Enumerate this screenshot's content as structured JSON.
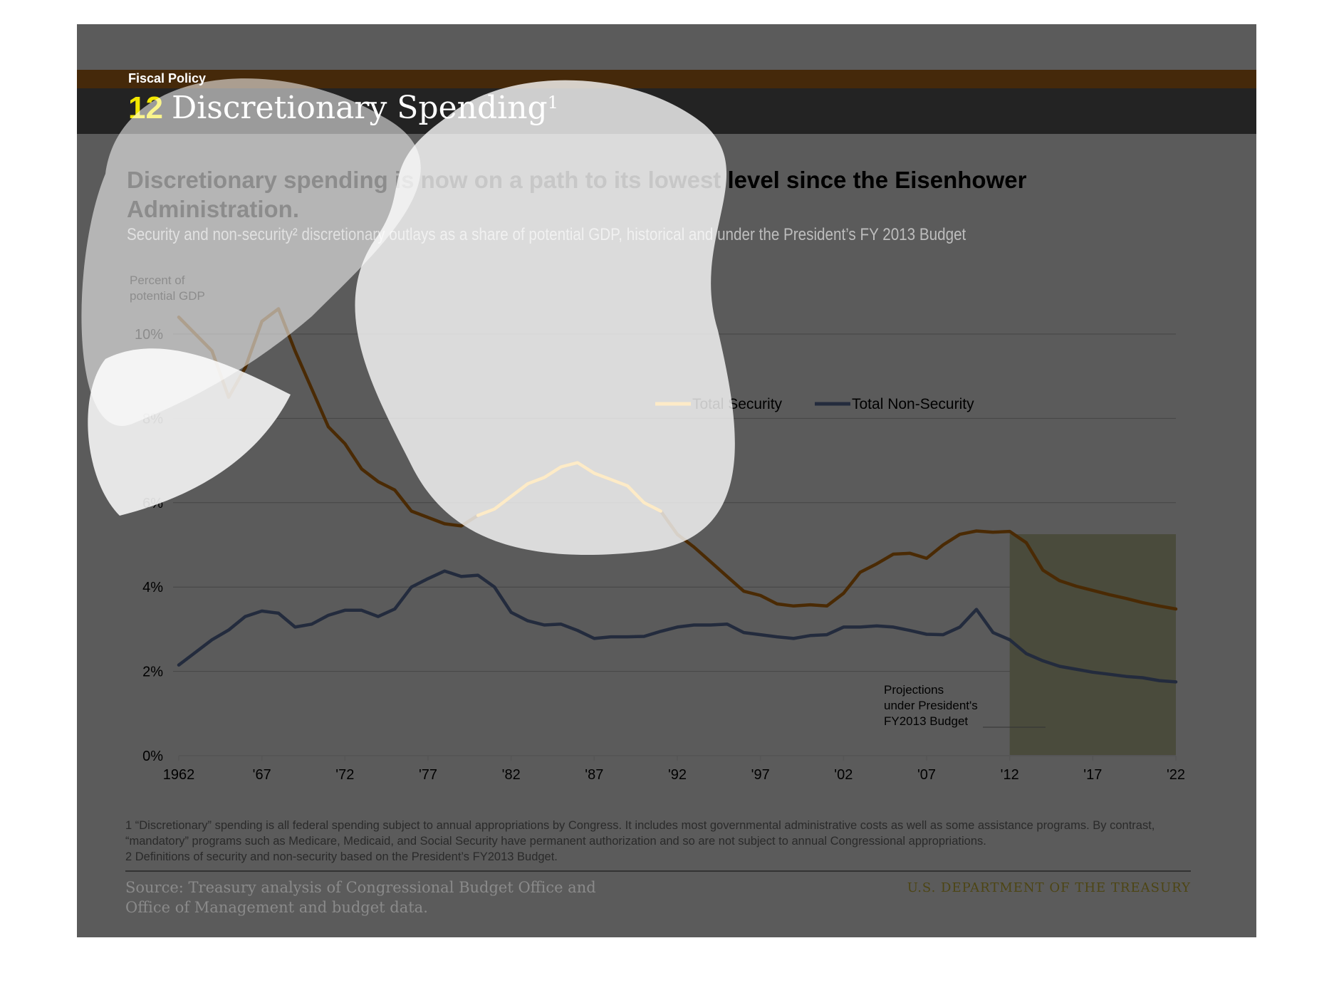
{
  "header": {
    "section": "Fiscal Policy",
    "number": "12",
    "title": "Discretionary Spending",
    "title_superscript": "1"
  },
  "headline": "Discretionary spending is now on a path to its lowest level since the Eisenhower Administration.",
  "subtitle": "Security and non-security² discretionary outlays as a share of potential GDP, historical and under the President’s FY 2013 Budget",
  "footnotes": [
    "1 “Discretionary” spending is all federal spending subject to annual appropriations by Congress. It includes most governmental administrative costs as well as some assistance programs. By contrast, “mandatory” programs such as Medicare, Medicaid, and Social Security have permanent authorization and so are not subject to annual Congressional appropriations.",
    "2 Definitions of security and non-security based on the President’s FY2013 Budget."
  ],
  "source": "Source: Treasury analysis of Congressional Budget Office and Office of Management and budget data.",
  "agency": "U.S. DEPARTMENT OF THE TREASURY",
  "colors": {
    "security": "#4a2a04",
    "security_highlight": "#f5a300",
    "non_security": "#232b3d",
    "projection_shade": "#4a4b3c"
  },
  "chart_data": {
    "type": "line",
    "title": "",
    "ylabel": "Percent of potential GDP",
    "xlabel": "",
    "ylim": [
      0,
      11
    ],
    "y_ticks": [
      "0%",
      "2%",
      "4%",
      "6%",
      "8%",
      "10%"
    ],
    "y_tick_values": [
      0,
      2,
      4,
      6,
      8,
      10
    ],
    "x_ticks": [
      "1962",
      "'67",
      "'72",
      "'77",
      "'82",
      "'87",
      "'92",
      "'97",
      "'02",
      "'07",
      "'12",
      "'17",
      "'22"
    ],
    "x_tick_values": [
      1962,
      1967,
      1972,
      1977,
      1982,
      1987,
      1992,
      1997,
      2002,
      2007,
      2012,
      2017,
      2022
    ],
    "x": [
      1962,
      1963,
      1964,
      1965,
      1966,
      1967,
      1968,
      1969,
      1970,
      1971,
      1972,
      1973,
      1974,
      1975,
      1976,
      1977,
      1978,
      1979,
      1980,
      1981,
      1982,
      1983,
      1984,
      1985,
      1986,
      1987,
      1988,
      1989,
      1990,
      1991,
      1992,
      1993,
      1994,
      1995,
      1996,
      1997,
      1998,
      1999,
      2000,
      2001,
      2002,
      2003,
      2004,
      2005,
      2006,
      2007,
      2008,
      2009,
      2010,
      2011,
      2012,
      2013,
      2014,
      2015,
      2016,
      2017,
      2018,
      2019,
      2020,
      2021,
      2022
    ],
    "series": [
      {
        "name": "Total Security",
        "values": [
          10.4,
          10.0,
          9.6,
          8.5,
          9.2,
          10.3,
          10.6,
          9.6,
          8.7,
          7.8,
          7.4,
          6.8,
          6.5,
          6.3,
          5.8,
          5.65,
          5.5,
          5.45,
          5.7,
          5.85,
          6.15,
          6.45,
          6.6,
          6.85,
          6.95,
          6.7,
          6.55,
          6.4,
          6.0,
          5.8,
          5.25,
          4.95,
          4.6,
          4.25,
          3.9,
          3.8,
          3.6,
          3.55,
          3.58,
          3.55,
          3.85,
          4.35,
          4.55,
          4.78,
          4.8,
          4.68,
          5.0,
          5.25,
          5.33,
          5.3,
          5.32,
          5.05,
          4.4,
          4.15,
          4.02,
          3.92,
          3.82,
          3.73,
          3.63,
          3.55,
          3.48
        ]
      },
      {
        "name": "Total Non-Security",
        "values": [
          2.15,
          2.45,
          2.75,
          2.98,
          3.3,
          3.43,
          3.38,
          3.05,
          3.12,
          3.33,
          3.45,
          3.45,
          3.3,
          3.48,
          4.0,
          4.2,
          4.38,
          4.25,
          4.28,
          4.0,
          3.4,
          3.2,
          3.1,
          3.12,
          2.97,
          2.78,
          2.82,
          2.82,
          2.83,
          2.95,
          3.05,
          3.1,
          3.1,
          3.12,
          2.92,
          2.87,
          2.82,
          2.78,
          2.85,
          2.87,
          3.05,
          3.05,
          3.08,
          3.05,
          2.97,
          2.88,
          2.87,
          3.05,
          3.47,
          2.92,
          2.75,
          2.42,
          2.25,
          2.12,
          2.05,
          1.98,
          1.93,
          1.88,
          1.85,
          1.78,
          1.75
        ]
      }
    ],
    "projection_start": 2012,
    "projection_label": "Projections under President's FY2013 Budget",
    "legend": [
      "Total Security",
      "Total Non-Security"
    ],
    "legend_position": "upper-right",
    "grid": true
  }
}
